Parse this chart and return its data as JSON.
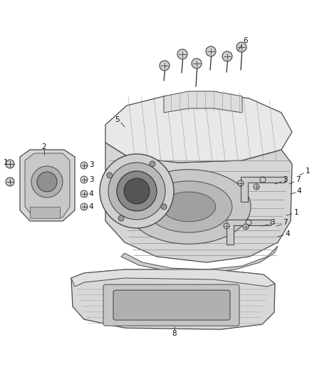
{
  "bg_color": "#ffffff",
  "line_color": "#4a4a4a",
  "dark_color": "#2a2a2a",
  "mid_gray": "#888888",
  "light_gray": "#cccccc",
  "fig_width": 4.38,
  "fig_height": 5.33,
  "dpi": 100
}
